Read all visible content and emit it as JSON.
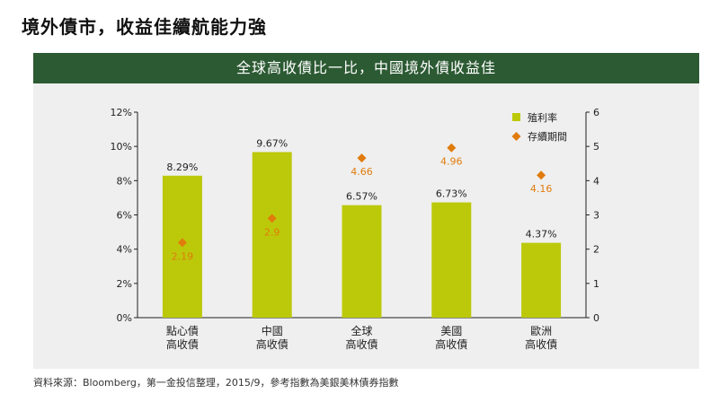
{
  "page": {
    "title": "境外債市，收益佳續航能力強",
    "banner": "全球高收債比一比，中國境外債收益佳",
    "source": "資料來源：Bloomberg，第一金投信整理，2015/9，參考指數為美銀美林債券指數"
  },
  "chart_data": {
    "type": "bar",
    "categories": [
      [
        "點心債",
        "高收債"
      ],
      [
        "中國",
        "高收債"
      ],
      [
        "全球",
        "高收債"
      ],
      [
        "美國",
        "高收債"
      ],
      [
        "歐洲",
        "高收債"
      ]
    ],
    "series": [
      {
        "name": "殖利率",
        "kind": "bar",
        "axis": "left",
        "color": "#bcc90a",
        "values": [
          8.29,
          9.67,
          6.57,
          6.73,
          4.37
        ],
        "labels": [
          "8.29%",
          "9.67%",
          "6.57%",
          "6.73%",
          "4.37%"
        ]
      },
      {
        "name": "存續期間",
        "kind": "scatter",
        "marker": "diamond",
        "axis": "right",
        "color": "#e07b0c",
        "values": [
          2.19,
          2.9,
          4.66,
          4.96,
          4.16
        ],
        "labels": [
          "2.19",
          "2.9",
          "4.66",
          "4.96",
          "4.16"
        ]
      }
    ],
    "y_left": {
      "lim": [
        0,
        12
      ],
      "ticks": [
        "0%",
        "2%",
        "4%",
        "6%",
        "8%",
        "10%",
        "12%"
      ]
    },
    "y_right": {
      "lim": [
        0,
        6
      ],
      "ticks": [
        "0",
        "1",
        "2",
        "3",
        "4",
        "5",
        "6"
      ]
    },
    "grid": false,
    "legend": "top-right"
  }
}
